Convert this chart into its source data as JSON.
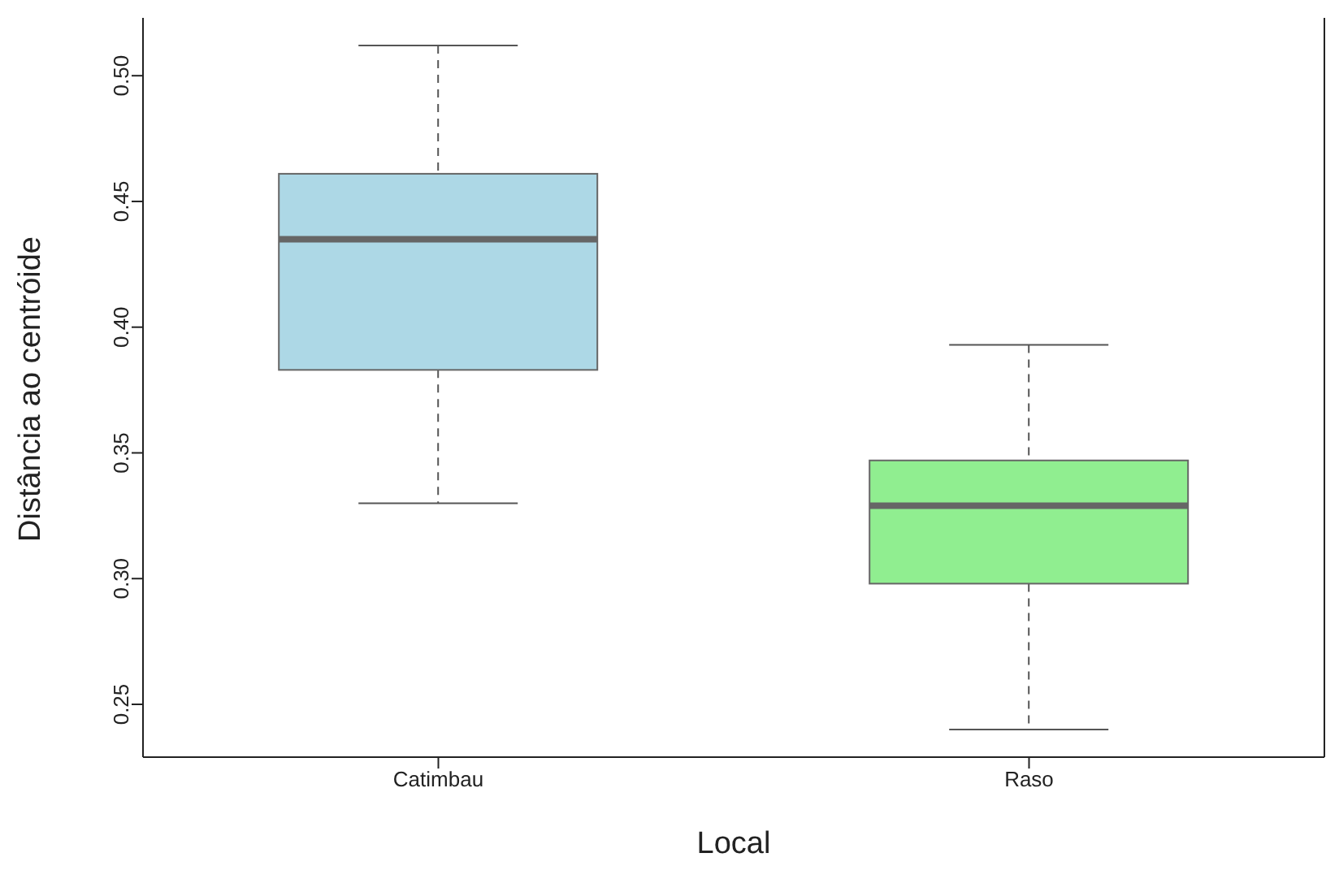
{
  "chart_data": {
    "type": "box",
    "xlabel": "Local",
    "ylabel": "Distância ao centróide",
    "categories": [
      "Catimbau",
      "Raso"
    ],
    "colors": [
      "#add8e6",
      "#90ee90"
    ],
    "boxes": [
      {
        "low": 0.33,
        "q1": 0.383,
        "median": 0.435,
        "q3": 0.461,
        "high": 0.512
      },
      {
        "low": 0.24,
        "q1": 0.298,
        "median": 0.329,
        "q3": 0.347,
        "high": 0.393
      }
    ],
    "ylim": [
      0.229,
      0.523
    ],
    "yticks": [
      {
        "value": 0.25,
        "label": "0.25"
      },
      {
        "value": 0.3,
        "label": "0.30"
      },
      {
        "value": 0.35,
        "label": "0.35"
      },
      {
        "value": 0.4,
        "label": "0.40"
      },
      {
        "value": 0.45,
        "label": "0.45"
      },
      {
        "value": 0.5,
        "label": "0.50"
      }
    ],
    "grid": false,
    "legend": false
  }
}
